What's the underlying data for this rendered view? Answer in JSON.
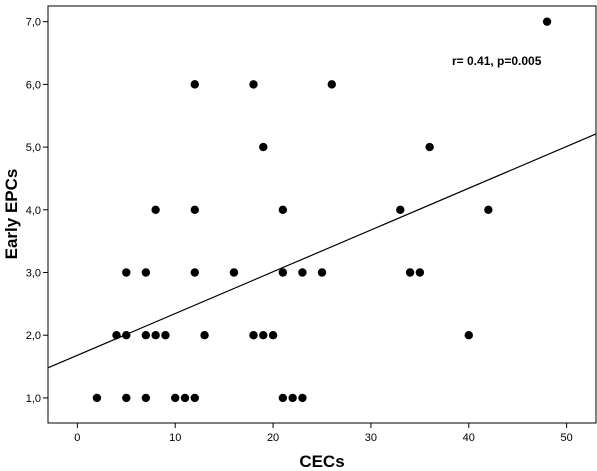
{
  "chart_data": {
    "type": "scatter",
    "title": "",
    "xlabel": "CECs",
    "ylabel": "Early EPCs",
    "xlim": [
      -3,
      53
    ],
    "ylim": [
      0.6,
      7.25
    ],
    "x_ticks": [
      0,
      10,
      20,
      30,
      40,
      50
    ],
    "x_tick_labels": [
      "0",
      "10",
      "20",
      "30",
      "40",
      "50"
    ],
    "y_ticks": [
      1,
      2,
      3,
      4,
      5,
      6,
      7
    ],
    "y_tick_labels": [
      "1,0",
      "2,0",
      "3,0",
      "4,0",
      "5,0",
      "6,0",
      "7,0"
    ],
    "grid": false,
    "annotation": "r= 0.41, p=0.005",
    "points": [
      {
        "x": 2,
        "y": 1
      },
      {
        "x": 5,
        "y": 1
      },
      {
        "x": 7,
        "y": 1
      },
      {
        "x": 10,
        "y": 1
      },
      {
        "x": 11,
        "y": 1
      },
      {
        "x": 12,
        "y": 1
      },
      {
        "x": 21,
        "y": 1
      },
      {
        "x": 22,
        "y": 1
      },
      {
        "x": 23,
        "y": 1
      },
      {
        "x": 4,
        "y": 2
      },
      {
        "x": 5,
        "y": 2
      },
      {
        "x": 7,
        "y": 2
      },
      {
        "x": 8,
        "y": 2
      },
      {
        "x": 9,
        "y": 2
      },
      {
        "x": 13,
        "y": 2
      },
      {
        "x": 18,
        "y": 2
      },
      {
        "x": 19,
        "y": 2
      },
      {
        "x": 20,
        "y": 2
      },
      {
        "x": 40,
        "y": 2
      },
      {
        "x": 5,
        "y": 3
      },
      {
        "x": 7,
        "y": 3
      },
      {
        "x": 12,
        "y": 3
      },
      {
        "x": 16,
        "y": 3
      },
      {
        "x": 21,
        "y": 3
      },
      {
        "x": 23,
        "y": 3
      },
      {
        "x": 25,
        "y": 3
      },
      {
        "x": 34,
        "y": 3
      },
      {
        "x": 35,
        "y": 3
      },
      {
        "x": 8,
        "y": 4
      },
      {
        "x": 12,
        "y": 4
      },
      {
        "x": 21,
        "y": 4
      },
      {
        "x": 33,
        "y": 4
      },
      {
        "x": 42,
        "y": 4
      },
      {
        "x": 19,
        "y": 5
      },
      {
        "x": 36,
        "y": 5
      },
      {
        "x": 12,
        "y": 6
      },
      {
        "x": 18,
        "y": 6
      },
      {
        "x": 26,
        "y": 6
      },
      {
        "x": 48,
        "y": 7
      }
    ],
    "fit_line": {
      "x": [
        -3,
        53
      ],
      "y": [
        1.48,
        5.21
      ]
    }
  }
}
